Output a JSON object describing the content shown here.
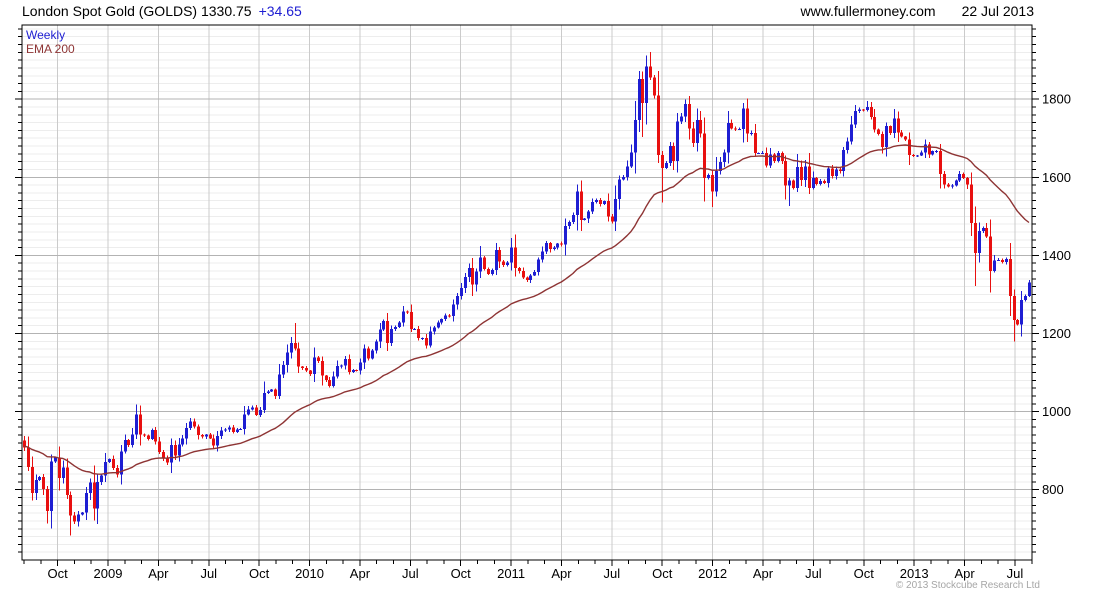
{
  "header": {
    "title_left": "London Spot Gold (GOLDS) 1330.75",
    "title_change": "+34.65",
    "site": "www.fullermoney.com",
    "date": "22 Jul 2013"
  },
  "legend": {
    "line1": "Weekly",
    "line2": "EMA 200"
  },
  "footer": {
    "copyright": "© 2013 Stockcube Research Ltd"
  },
  "colors": {
    "up": "#1e1ed2",
    "down": "#e81010",
    "ema": "#8e3434",
    "grid_minor_h": "#ededed",
    "grid_major_h": "#b3b3b3",
    "grid_vertical": "#cbcbcb",
    "frame": "#000000",
    "axis_text": "#000000"
  },
  "chart_data": {
    "type": "candlestick",
    "title": "London Spot Gold (GOLDS) weekly candles with 200-period EMA",
    "timeframe": "Weekly",
    "overlay": "EMA 200",
    "x_range": "Aug 2008 - 22 Jul 2013",
    "ylim": [
      620,
      1990
    ],
    "y_ticks": [
      800,
      1000,
      1200,
      1400,
      1600,
      1800
    ],
    "y_minor_step": 20,
    "x_labels": [
      "Oct",
      "2009",
      "Apr",
      "Jul",
      "Oct",
      "2010",
      "Apr",
      "Jul",
      "Oct",
      "2011",
      "Apr",
      "Jul",
      "Oct",
      "2012",
      "Apr",
      "Jul",
      "Oct",
      "2013",
      "Apr",
      "Jul"
    ],
    "x_label_first_month_offset": 2,
    "x_label_month_step": 3,
    "weeks_per_month": 4.3452,
    "open_first": 926,
    "weekly_closes": [
      908,
      858,
      792,
      825,
      833,
      802,
      745,
      872,
      882,
      830,
      857,
      787,
      734,
      718,
      736,
      742,
      791,
      819,
      752,
      820,
      837,
      871,
      879,
      855,
      839,
      898,
      927,
      914,
      941,
      993,
      942,
      939,
      930,
      953,
      923,
      897,
      883,
      870,
      914,
      888,
      916,
      931,
      958,
      975,
      962,
      940,
      936,
      941,
      931,
      913,
      937,
      951,
      954,
      959,
      948,
      954,
      955,
      993,
      1006,
      1010,
      991,
      1004,
      1048,
      1051,
      1056,
      1040,
      1095,
      1119,
      1151,
      1176,
      1162,
      1115,
      1112,
      1105,
      1096,
      1138,
      1130,
      1092,
      1081,
      1066,
      1090,
      1117,
      1118,
      1135,
      1102,
      1107,
      1105,
      1126,
      1161,
      1136,
      1157,
      1179,
      1210,
      1232,
      1176,
      1212,
      1217,
      1228,
      1256,
      1255,
      1211,
      1211,
      1188,
      1189,
      1169,
      1205,
      1216,
      1228,
      1237,
      1246,
      1245,
      1274,
      1296,
      1317,
      1345,
      1368,
      1325,
      1359,
      1395,
      1365,
      1353,
      1362,
      1414,
      1385,
      1376,
      1382,
      1420,
      1368,
      1360,
      1343,
      1337,
      1349,
      1357,
      1389,
      1410,
      1432,
      1417,
      1420,
      1430,
      1428,
      1475,
      1486,
      1504,
      1564,
      1491,
      1494,
      1513,
      1537,
      1542,
      1532,
      1539,
      1500,
      1487,
      1544,
      1594,
      1601,
      1628,
      1664,
      1747,
      1852,
      1790,
      1884,
      1856,
      1810,
      1657,
      1624,
      1636,
      1680,
      1642,
      1743,
      1756,
      1788,
      1725,
      1688,
      1747,
      1712,
      1598,
      1606,
      1563,
      1616,
      1639,
      1664,
      1739,
      1725,
      1723,
      1724,
      1776,
      1712,
      1714,
      1662,
      1662,
      1662,
      1630,
      1658,
      1642,
      1662,
      1642,
      1579,
      1592,
      1573,
      1626,
      1593,
      1628,
      1572,
      1598,
      1583,
      1590,
      1585,
      1623,
      1603,
      1620,
      1616,
      1670,
      1692,
      1735,
      1770,
      1773,
      1772,
      1780,
      1754,
      1722,
      1711,
      1677,
      1731,
      1714,
      1751,
      1715,
      1704,
      1697,
      1657,
      1656,
      1656,
      1663,
      1684,
      1659,
      1667,
      1667,
      1609,
      1581,
      1576,
      1579,
      1592,
      1608,
      1598,
      1581,
      1483,
      1406,
      1462,
      1470,
      1448,
      1360,
      1387,
      1388,
      1383,
      1391,
      1296,
      1234,
      1223,
      1286,
      1296,
      1331
    ],
    "wick_overrides": {
      "2": {
        "low": 773
      },
      "12": {
        "low": 683
      },
      "70": {
        "high": 1227
      },
      "118": {
        "high": 1424
      },
      "122": {
        "high": 1432
      },
      "144": {
        "low": 1463
      },
      "160": {
        "low": 1703
      },
      "161": {
        "high": 1912
      },
      "162": {
        "high": 1921
      },
      "165": {
        "low": 1535
      },
      "178": {
        "low": 1524
      },
      "186": {
        "high": 1790
      },
      "198": {
        "low": 1527
      },
      "218": {
        "high": 1796
      },
      "246": {
        "low": 1322
      },
      "256": {
        "low": 1180
      },
      "260": {
        "high": 1337,
        "low": 1294
      }
    },
    "ema_alpha": 0.0488,
    "ema_seed": 912,
    "last_price": 1330.75,
    "last_change": 34.65
  }
}
